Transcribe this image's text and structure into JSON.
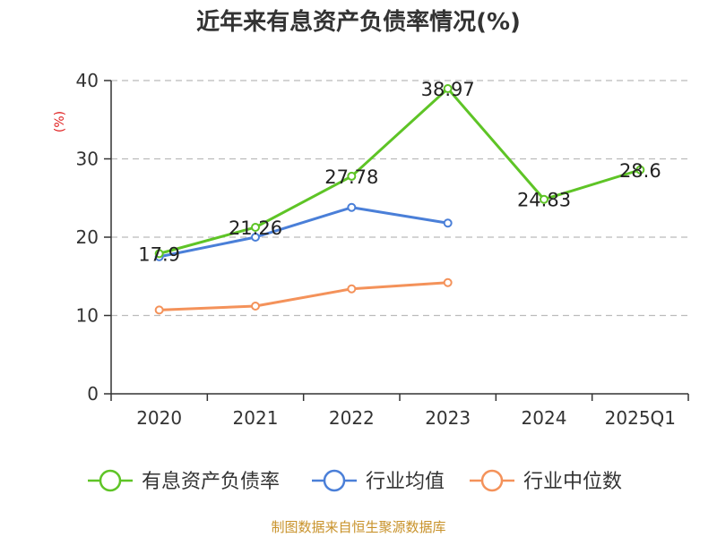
{
  "title": "近年来有息资产负债率情况(%)",
  "y_unit_label": "(%)",
  "source": "制图数据来自恒生聚源数据库",
  "colors": {
    "series1": "#5ec426",
    "series2": "#4a7fd8",
    "series3": "#f4925a",
    "grid": "#bbbbbb",
    "axis": "#333333"
  },
  "chart_data": {
    "type": "line",
    "title": "近年来有息资产负债率情况(%)",
    "ylabel": "(%)",
    "xlabel": "",
    "categories": [
      "2020",
      "2021",
      "2022",
      "2023",
      "2024",
      "2025Q1"
    ],
    "ylim": [
      0,
      40
    ],
    "yticks": [
      0,
      10,
      20,
      30,
      40
    ],
    "grid": true,
    "legend_position": "bottom",
    "series": [
      {
        "name": "有息资产负债率",
        "values": [
          17.9,
          21.26,
          27.78,
          38.97,
          24.83,
          28.6
        ],
        "labels": [
          "17.9",
          "21.26",
          "27.78",
          "38.97",
          "24.83",
          "28.6"
        ]
      },
      {
        "name": "行业均值",
        "values": [
          17.5,
          20.0,
          23.8,
          21.8,
          null,
          null
        ]
      },
      {
        "name": "行业中位数",
        "values": [
          10.7,
          11.2,
          13.4,
          14.2,
          null,
          null
        ]
      }
    ]
  }
}
